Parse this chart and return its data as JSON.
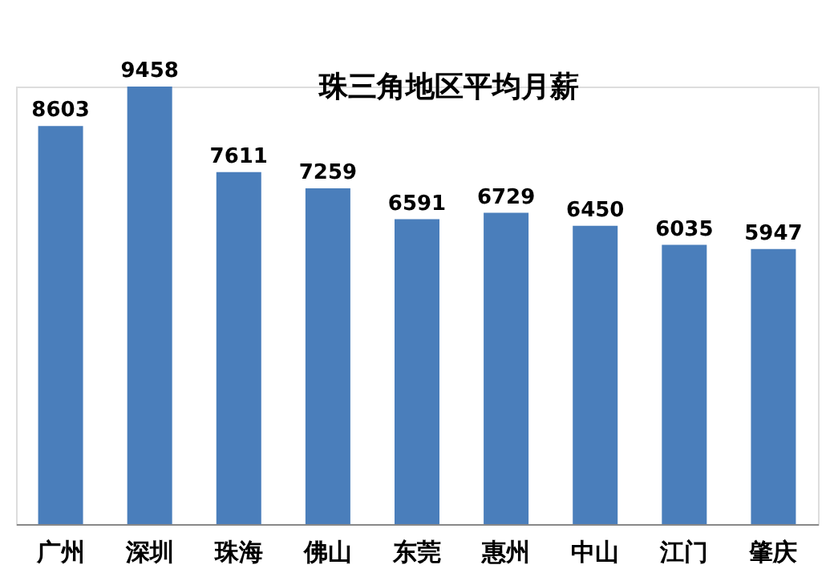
{
  "chart_data": {
    "type": "bar",
    "title": "珠三角地区平均月薪",
    "categories": [
      "广州",
      "深圳",
      "珠海",
      "佛山",
      "东莞",
      "惠州",
      "中山",
      "江门",
      "肇庆"
    ],
    "values": [
      8603,
      9458,
      7611,
      7259,
      6591,
      6729,
      6450,
      6035,
      5947
    ],
    "color": "#4a7ebb",
    "data_labels": true
  }
}
